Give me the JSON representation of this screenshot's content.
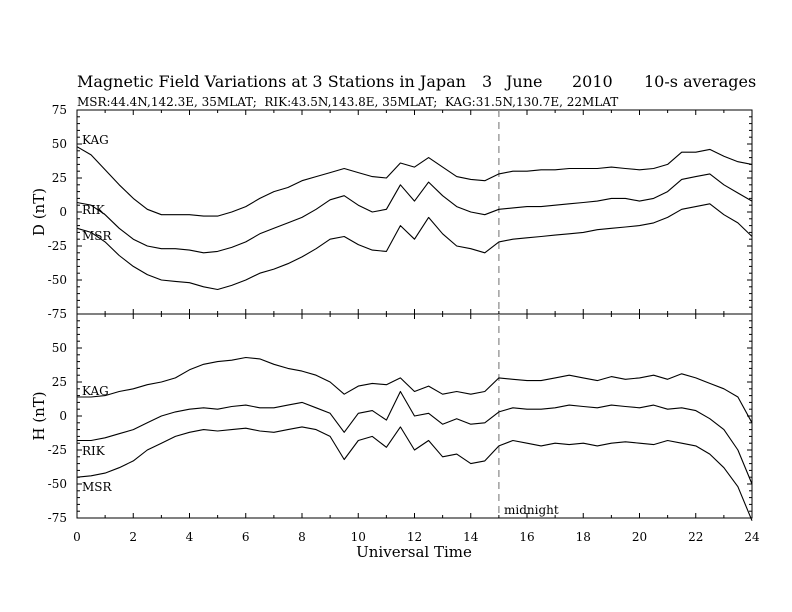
{
  "figure": {
    "title": "Magnetic Field Variations at 3 Stations in Japan",
    "date_day": "3",
    "date_month": "June",
    "date_year": "2010",
    "averaging": "10-s averages",
    "stations_info": "MSR:44.4N,142.3E, 35MLAT;  RIK:43.5N,143.8E, 35MLAT;  KAG:31.5N,130.7E, 22MLAT",
    "xlabel": "Universal Time",
    "midnight_label": "midnight"
  },
  "chart_data": [
    {
      "type": "line",
      "panel": "D",
      "ylabel": "D (nT)",
      "xlim": [
        0,
        24
      ],
      "ylim": [
        -75,
        75
      ],
      "xticks": [
        0,
        2,
        4,
        6,
        8,
        10,
        12,
        14,
        16,
        18,
        20,
        22,
        24
      ],
      "yticks": [
        -75,
        -50,
        -25,
        0,
        25,
        50,
        75
      ],
      "midnight_ut": 15,
      "series": [
        {
          "name": "KAG",
          "x": [
            0,
            0.5,
            1,
            1.5,
            2,
            2.5,
            3,
            3.5,
            4,
            4.5,
            5,
            5.5,
            6,
            6.5,
            7,
            7.5,
            8,
            8.5,
            9,
            9.5,
            10,
            10.5,
            11,
            11.5,
            12,
            12.5,
            13,
            13.5,
            14,
            14.5,
            15,
            15.5,
            16,
            16.5,
            17,
            17.5,
            18,
            18.5,
            19,
            19.5,
            20,
            20.5,
            21,
            21.5,
            22,
            22.5,
            23,
            23.5,
            24
          ],
          "y": [
            48,
            42,
            31,
            20,
            10,
            2,
            -2,
            -2,
            -2,
            -3,
            -3,
            0,
            4,
            10,
            15,
            18,
            23,
            26,
            29,
            32,
            29,
            26,
            25,
            36,
            33,
            40,
            33,
            26,
            24,
            23,
            28,
            30,
            30,
            31,
            31,
            32,
            32,
            32,
            33,
            32,
            31,
            32,
            35,
            44,
            44,
            46,
            41,
            37,
            35
          ]
        },
        {
          "name": "RIK",
          "x": [
            0,
            0.5,
            1,
            1.5,
            2,
            2.5,
            3,
            3.5,
            4,
            4.5,
            5,
            5.5,
            6,
            6.5,
            7,
            7.5,
            8,
            8.5,
            9,
            9.5,
            10,
            10.5,
            11,
            11.5,
            12,
            12.5,
            13,
            13.5,
            14,
            14.5,
            15,
            15.5,
            16,
            16.5,
            17,
            17.5,
            18,
            18.5,
            19,
            19.5,
            20,
            20.5,
            21,
            21.5,
            22,
            22.5,
            23,
            23.5,
            24
          ],
          "y": [
            7,
            5,
            -2,
            -12,
            -20,
            -25,
            -27,
            -27,
            -28,
            -30,
            -29,
            -26,
            -22,
            -16,
            -12,
            -8,
            -4,
            2,
            9,
            12,
            5,
            0,
            2,
            20,
            8,
            22,
            12,
            4,
            0,
            -2,
            2,
            3,
            4,
            4,
            5,
            6,
            7,
            8,
            10,
            10,
            8,
            10,
            15,
            24,
            26,
            28,
            20,
            14,
            8
          ]
        },
        {
          "name": "MSR",
          "x": [
            0,
            0.5,
            1,
            1.5,
            2,
            2.5,
            3,
            3.5,
            4,
            4.5,
            5,
            5.5,
            6,
            6.5,
            7,
            7.5,
            8,
            8.5,
            9,
            9.5,
            10,
            10.5,
            11,
            11.5,
            12,
            12.5,
            13,
            13.5,
            14,
            14.5,
            15,
            15.5,
            16,
            16.5,
            17,
            17.5,
            18,
            18.5,
            19,
            19.5,
            20,
            20.5,
            21,
            21.5,
            22,
            22.5,
            23,
            23.5,
            24
          ],
          "y": [
            -12,
            -15,
            -22,
            -32,
            -40,
            -46,
            -50,
            -51,
            -52,
            -55,
            -57,
            -54,
            -50,
            -45,
            -42,
            -38,
            -33,
            -27,
            -20,
            -18,
            -24,
            -28,
            -29,
            -10,
            -20,
            -4,
            -16,
            -25,
            -27,
            -30,
            -22,
            -20,
            -19,
            -18,
            -17,
            -16,
            -15,
            -13,
            -12,
            -11,
            -10,
            -8,
            -4,
            2,
            4,
            6,
            -2,
            -8,
            -18
          ]
        }
      ]
    },
    {
      "type": "line",
      "panel": "H",
      "ylabel": "H (nT)",
      "xlim": [
        0,
        24
      ],
      "ylim": [
        -75,
        75
      ],
      "xticks": [
        0,
        2,
        4,
        6,
        8,
        10,
        12,
        14,
        16,
        18,
        20,
        22,
        24
      ],
      "yticks": [
        -75,
        -50,
        -25,
        0,
        25,
        50,
        75
      ],
      "midnight_ut": 15,
      "series": [
        {
          "name": "KAG",
          "x": [
            0,
            0.5,
            1,
            1.5,
            2,
            2.5,
            3,
            3.5,
            4,
            4.5,
            5,
            5.5,
            6,
            6.5,
            7,
            7.5,
            8,
            8.5,
            9,
            9.5,
            10,
            10.5,
            11,
            11.5,
            12,
            12.5,
            13,
            13.5,
            14,
            14.5,
            15,
            15.5,
            16,
            16.5,
            17,
            17.5,
            18,
            18.5,
            19,
            19.5,
            20,
            20.5,
            21,
            21.5,
            22,
            22.5,
            23,
            23.5,
            24
          ],
          "y": [
            14,
            14,
            15,
            18,
            20,
            23,
            25,
            28,
            34,
            38,
            40,
            41,
            43,
            42,
            38,
            35,
            33,
            30,
            25,
            16,
            22,
            24,
            23,
            28,
            18,
            22,
            16,
            18,
            16,
            18,
            28,
            27,
            26,
            26,
            28,
            30,
            28,
            26,
            29,
            27,
            28,
            30,
            27,
            31,
            28,
            24,
            20,
            14,
            -5
          ]
        },
        {
          "name": "RIK",
          "x": [
            0,
            0.5,
            1,
            1.5,
            2,
            2.5,
            3,
            3.5,
            4,
            4.5,
            5,
            5.5,
            6,
            6.5,
            7,
            7.5,
            8,
            8.5,
            9,
            9.5,
            10,
            10.5,
            11,
            11.5,
            12,
            12.5,
            13,
            13.5,
            14,
            14.5,
            15,
            15.5,
            16,
            16.5,
            17,
            17.5,
            18,
            18.5,
            19,
            19.5,
            20,
            20.5,
            21,
            21.5,
            22,
            22.5,
            23,
            23.5,
            24
          ],
          "y": [
            -18,
            -18,
            -16,
            -13,
            -10,
            -5,
            0,
            3,
            5,
            6,
            5,
            7,
            8,
            6,
            6,
            8,
            10,
            6,
            2,
            -12,
            2,
            4,
            -3,
            18,
            0,
            2,
            -6,
            -2,
            -6,
            -5,
            3,
            6,
            5,
            5,
            6,
            8,
            7,
            6,
            8,
            7,
            6,
            8,
            5,
            6,
            4,
            -2,
            -10,
            -25,
            -50
          ]
        },
        {
          "name": "MSR",
          "x": [
            0,
            0.5,
            1,
            1.5,
            2,
            2.5,
            3,
            3.5,
            4,
            4.5,
            5,
            5.5,
            6,
            6.5,
            7,
            7.5,
            8,
            8.5,
            9,
            9.5,
            10,
            10.5,
            11,
            11.5,
            12,
            12.5,
            13,
            13.5,
            14,
            14.5,
            15,
            15.5,
            16,
            16.5,
            17,
            17.5,
            18,
            18.5,
            19,
            19.5,
            20,
            20.5,
            21,
            21.5,
            22,
            22.5,
            23,
            23.5,
            24
          ],
          "y": [
            -45,
            -44,
            -42,
            -38,
            -33,
            -25,
            -20,
            -15,
            -12,
            -10,
            -11,
            -10,
            -9,
            -11,
            -12,
            -10,
            -8,
            -10,
            -15,
            -32,
            -18,
            -15,
            -23,
            -8,
            -25,
            -18,
            -30,
            -28,
            -35,
            -33,
            -22,
            -18,
            -20,
            -22,
            -20,
            -21,
            -20,
            -22,
            -20,
            -19,
            -20,
            -21,
            -18,
            -20,
            -22,
            -28,
            -38,
            -52,
            -77
          ]
        }
      ]
    }
  ]
}
